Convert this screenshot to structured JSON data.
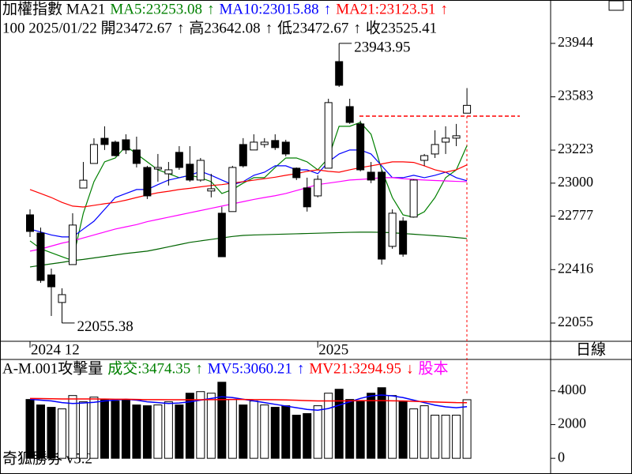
{
  "chart_data": [
    {
      "type": "candlestick",
      "header_items": [
        {
          "text": "加權指數 MA21",
          "color": "#000000"
        },
        {
          "text": "MA5:23253.08",
          "color": "#008000"
        },
        {
          "text": "↑",
          "color": "#008000"
        },
        {
          "text": "MA10:23015.88",
          "color": "#0000ff"
        },
        {
          "text": "↑",
          "color": "#0000ff"
        },
        {
          "text": "MA21:23123.51",
          "color": "#ff0000"
        },
        {
          "text": "↑",
          "color": "#ff0000"
        }
      ],
      "info_items": [
        "100 2025/01/22 開23472.67",
        "↑",
        "高23642.08",
        "↑",
        "低23472.67",
        "↑",
        "收23525.41"
      ],
      "categories": [
        "2024 12",
        null,
        null,
        null,
        null,
        null,
        null,
        null,
        null,
        null,
        null,
        null,
        null,
        null,
        null,
        null,
        null,
        null,
        null,
        null,
        null,
        null,
        null,
        null,
        null,
        null,
        null,
        "2025",
        null,
        null,
        null,
        null,
        null,
        null,
        null,
        null,
        null,
        null,
        null,
        null,
        null,
        null
      ],
      "open": [
        22786,
        22663,
        22380,
        22194,
        22450,
        22967,
        23133,
        23303,
        23277,
        23293,
        23224,
        23106,
        23095,
        23063,
        23208,
        23128,
        23021,
        22947,
        22797,
        22808,
        23261,
        23224,
        23261,
        23288,
        23277,
        23101,
        22968,
        22914,
        23101,
        23821,
        23517,
        23400,
        23074,
        23074,
        22573,
        22744,
        22771,
        23154,
        23197,
        23277,
        23304,
        23472.67
      ],
      "high": [
        22823,
        22700,
        22423,
        22290,
        22797,
        23143,
        23303,
        23384,
        23288,
        23330,
        23314,
        23117,
        23197,
        23143,
        23250,
        23250,
        23170,
        23063,
        22840,
        23117,
        23304,
        23330,
        23304,
        23330,
        23293,
        23106,
        23037,
        23053,
        23570,
        23943.95,
        23570,
        23422,
        23143,
        23090,
        22823,
        22770,
        23026,
        23197,
        23357,
        23384,
        23400,
        23642.08
      ],
      "low": [
        22636,
        22327,
        22103,
        22055.38,
        22450,
        22967,
        23133,
        23224,
        23180,
        23197,
        23106,
        22893,
        23010,
        22984,
        23090,
        23010,
        23010,
        22904,
        22503,
        22808,
        23106,
        23224,
        23240,
        23224,
        23181,
        23021,
        22808,
        22904,
        23101,
        23650,
        23400,
        23080,
        23000,
        22450,
        22557,
        22503,
        22767,
        23117,
        23170,
        23197,
        23250,
        23472.67
      ],
      "close": [
        22674,
        22343,
        22300,
        22247,
        22717,
        23020,
        23261,
        23261,
        23186,
        23224,
        23133,
        22914,
        23106,
        23090,
        23106,
        23021,
        23154,
        22962,
        22503,
        23106,
        23117,
        23277,
        23277,
        23240,
        23197,
        23037,
        22840,
        23026,
        23544,
        23661,
        23410,
        23090,
        23021,
        22487,
        22797,
        22520,
        23021,
        23186,
        23261,
        23304,
        23320,
        23525.41
      ],
      "series": [
        {
          "color": "#008000",
          "values": [
            22610,
            22557,
            22530,
            22503,
            22477,
            22797,
            23010,
            23144,
            23170,
            23250,
            23197,
            23144,
            23090,
            23064,
            23037,
            23053,
            23037,
            23010,
            22930,
            22957,
            23000,
            23037,
            23037,
            23106,
            23170,
            23170,
            23144,
            23090,
            23170,
            23384,
            23384,
            23410,
            23330,
            23090,
            22903,
            22786,
            22770,
            22807,
            22903,
            23037,
            23090,
            23253.08
          ]
        },
        {
          "color": "#0000ff",
          "values": [
            22690,
            22670,
            22650,
            22637,
            22637,
            22690,
            22743,
            22823,
            22903,
            22930,
            22957,
            22957,
            22990,
            23021,
            23037,
            23053,
            23080,
            23053,
            23021,
            22990,
            23010,
            23053,
            23074,
            23117,
            23117,
            23090,
            23090,
            23064,
            23144,
            23197,
            23224,
            23224,
            23197,
            23117,
            23037,
            23037,
            23053,
            23037,
            23053,
            23074,
            23037,
            23015.88
          ]
        },
        {
          "color": "#ff0000",
          "values": [
            22957,
            22930,
            22903,
            22870,
            22845,
            22839,
            22850,
            22861,
            22870,
            22885,
            22903,
            22920,
            22935,
            22945,
            22957,
            22965,
            22975,
            22984,
            22990,
            23000,
            23010,
            23020,
            23030,
            23040,
            23053,
            23064,
            23080,
            23090,
            23080,
            23074,
            23090,
            23105,
            23117,
            23130,
            23144,
            23144,
            23140,
            23117,
            23090,
            23074,
            23090,
            23123.51
          ]
        },
        {
          "color": "#ff00ff",
          "values": [
            22541,
            22555,
            22575,
            22595,
            22610,
            22630,
            22650,
            22670,
            22690,
            22705,
            22720,
            22740,
            22755,
            22770,
            22785,
            22800,
            22815,
            22830,
            22845,
            22860,
            22875,
            22890,
            22903,
            22915,
            22930,
            22950,
            22970,
            22990,
            23000,
            23010,
            23021,
            23025,
            23030,
            23037,
            23037,
            23030,
            23025,
            23021,
            23018,
            23015,
            23012,
            23010
          ]
        },
        {
          "color": "#006400",
          "values": [
            22434,
            22445,
            22455,
            22465,
            22477,
            22485,
            22495,
            22505,
            22515,
            22525,
            22533,
            22541,
            22555,
            22570,
            22585,
            22600,
            22610,
            22620,
            22630,
            22640,
            22647,
            22650,
            22652,
            22654,
            22656,
            22658,
            22660,
            22662,
            22664,
            22666,
            22668,
            22669,
            22669,
            22668,
            22665,
            22660,
            22655,
            22650,
            22645,
            22640,
            22633,
            22626
          ]
        }
      ],
      "annotations": [
        {
          "index": 29,
          "value": 23943.95,
          "label": "23943.95"
        },
        {
          "index": 3,
          "value": 22055.38,
          "label": "22055.38"
        }
      ],
      "ylim": [
        21932,
        24237
      ],
      "yticks": [
        22055,
        22416,
        22777,
        23000,
        23223,
        23583,
        23944
      ]
    },
    {
      "type": "bar",
      "header_items": [
        {
          "text": "A-M.001攻擊量",
          "color": "#000000"
        },
        {
          "text": "成交:3474.35",
          "color": "#008000"
        },
        {
          "text": "↑",
          "color": "#008000"
        },
        {
          "text": "MV5:3060.21",
          "color": "#0000ff"
        },
        {
          "text": "↑",
          "color": "#0000ff"
        },
        {
          "text": "MV21:3294.95",
          "color": "#ff0000"
        },
        {
          "text": "↓",
          "color": "#ff0000"
        },
        {
          "text": "股本",
          "color": "#ff00ff"
        }
      ],
      "values": [
        3488,
        3163,
        3023,
        2930,
        3721,
        3349,
        3628,
        3488,
        3395,
        3488,
        3163,
        3116,
        3163,
        3349,
        3163,
        3860,
        3953,
        3860,
        4511,
        3488,
        3163,
        3395,
        3163,
        3023,
        3116,
        2558,
        2651,
        3116,
        3860,
        4093,
        3488,
        3395,
        3860,
        4186,
        3721,
        3395,
        2930,
        3116,
        2558,
        2558,
        2558,
        3474.35
      ],
      "series": [
        {
          "color": "#0000ff",
          "values": [
            3500,
            3450,
            3400,
            3300,
            3250,
            3280,
            3320,
            3400,
            3450,
            3500,
            3450,
            3350,
            3300,
            3250,
            3280,
            3350,
            3450,
            3550,
            3650,
            3600,
            3500,
            3400,
            3300,
            3200,
            3100,
            3000,
            2900,
            2850,
            2950,
            3150,
            3350,
            3550,
            3700,
            3750,
            3700,
            3600,
            3450,
            3300,
            3150,
            3050,
            3000,
            3060.21
          ]
        },
        {
          "color": "#ff0000",
          "values": [
            3550,
            3540,
            3530,
            3520,
            3520,
            3520,
            3520,
            3510,
            3500,
            3500,
            3490,
            3480,
            3480,
            3470,
            3470,
            3470,
            3470,
            3480,
            3480,
            3490,
            3490,
            3480,
            3480,
            3470,
            3460,
            3440,
            3420,
            3400,
            3400,
            3400,
            3410,
            3420,
            3420,
            3420,
            3410,
            3400,
            3380,
            3360,
            3340,
            3320,
            3300,
            3294.95
          ]
        }
      ],
      "ylim": [
        -930,
        5860
      ],
      "yticks": [
        0,
        2000,
        4000
      ]
    }
  ],
  "period": "日線",
  "footer": "奇狐勝券 v5.2"
}
